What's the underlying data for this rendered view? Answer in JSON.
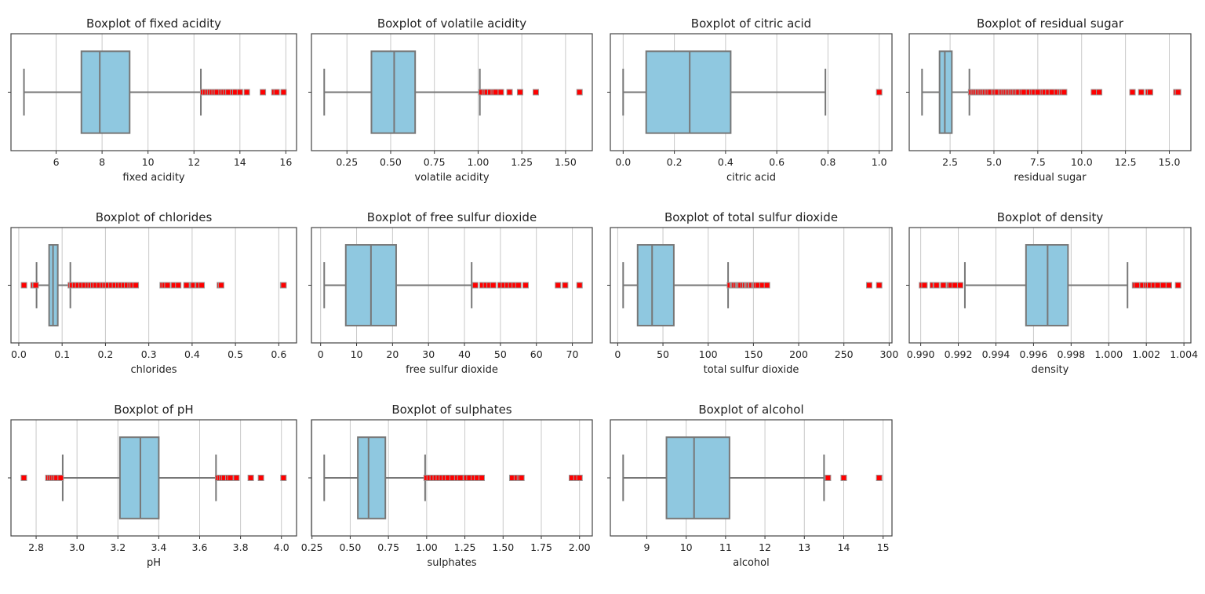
{
  "style": {
    "box_fill": "#8fc8e0",
    "line_color": "#777777",
    "flier_color": "#ff0000",
    "grid_color": "#c8c8c8"
  },
  "chart_data": [
    {
      "type": "boxplot",
      "title": "Boxplot of fixed acidity",
      "xlabel": "fixed acidity",
      "grid": true,
      "xlim": [
        4.035,
        16.465
      ],
      "ticks": [
        6,
        8,
        10,
        12,
        14,
        16
      ],
      "tick_labels": [
        "6",
        "8",
        "10",
        "12",
        "14",
        "16"
      ],
      "whisker_low": 4.6,
      "q1": 7.1,
      "median": 7.9,
      "q3": 9.2,
      "whisker_high": 12.3,
      "outliers": [
        12.4,
        12.5,
        12.6,
        12.7,
        12.8,
        12.9,
        13.0,
        13.2,
        13.3,
        13.4,
        13.5,
        13.7,
        13.8,
        14.0,
        14.3,
        15.0,
        15.5,
        15.6,
        15.9
      ]
    },
    {
      "type": "boxplot",
      "title": "Boxplot of volatile acidity",
      "xlabel": "volatile acidity",
      "grid": true,
      "xlim": [
        0.047,
        1.653
      ],
      "ticks": [
        0.25,
        0.5,
        0.75,
        1.0,
        1.25,
        1.5
      ],
      "tick_labels": [
        "0.25",
        "0.50",
        "0.75",
        "1.00",
        "1.25",
        "1.50"
      ],
      "whisker_low": 0.12,
      "q1": 0.39,
      "median": 0.52,
      "q3": 0.64,
      "whisker_high": 1.01,
      "outliers": [
        1.02,
        1.04,
        1.05,
        1.07,
        1.09,
        1.1,
        1.13,
        1.18,
        1.24,
        1.33,
        1.58
      ]
    },
    {
      "type": "boxplot",
      "title": "Boxplot of citric acid",
      "xlabel": "citric acid",
      "grid": true,
      "xlim": [
        -0.05,
        1.05
      ],
      "ticks": [
        0,
        0.2,
        0.4,
        0.6,
        0.8,
        1.0
      ],
      "tick_labels": [
        "0.0",
        "0.2",
        "0.4",
        "0.6",
        "0.8",
        "1.0"
      ],
      "whisker_low": 0.0,
      "q1": 0.09,
      "median": 0.26,
      "q3": 0.42,
      "whisker_high": 0.79,
      "outliers": [
        1.0
      ]
    },
    {
      "type": "boxplot",
      "title": "Boxplot of residual sugar",
      "xlabel": "residual sugar",
      "grid": true,
      "xlim": [
        0.17,
        16.23
      ],
      "ticks": [
        2.5,
        5,
        7.5,
        10,
        12.5,
        15
      ],
      "tick_labels": [
        "2.5",
        "5.0",
        "7.5",
        "10.0",
        "12.5",
        "15.0"
      ],
      "whisker_low": 0.9,
      "q1": 1.9,
      "median": 2.2,
      "q3": 2.6,
      "whisker_high": 3.6,
      "outliers": [
        3.7,
        3.8,
        3.9,
        4.0,
        4.1,
        4.2,
        4.3,
        4.4,
        4.5,
        4.6,
        4.7,
        4.8,
        5.0,
        5.1,
        5.2,
        5.4,
        5.5,
        5.6,
        5.7,
        5.8,
        5.9,
        6.0,
        6.1,
        6.2,
        6.3,
        6.4,
        6.6,
        6.7,
        7.0,
        7.2,
        7.3,
        7.5,
        7.8,
        7.9,
        8.1,
        8.3,
        8.6,
        8.8,
        8.9,
        9.0,
        10.7,
        11.0,
        12.9,
        13.4,
        13.8,
        13.9,
        15.4,
        15.5
      ]
    },
    {
      "type": "boxplot",
      "title": "Boxplot of chlorides",
      "xlabel": "chlorides",
      "grid": true,
      "xlim": [
        -0.018,
        0.641
      ],
      "ticks": [
        0,
        0.1,
        0.2,
        0.3,
        0.4,
        0.5,
        0.6
      ],
      "tick_labels": [
        "0.0",
        "0.1",
        "0.2",
        "0.3",
        "0.4",
        "0.5",
        "0.6"
      ],
      "whisker_low": 0.041,
      "q1": 0.07,
      "median": 0.079,
      "q3": 0.09,
      "whisker_high": 0.119,
      "outliers": [
        0.012,
        0.034,
        0.038,
        0.039,
        0.12,
        0.123,
        0.13,
        0.137,
        0.145,
        0.152,
        0.16,
        0.166,
        0.172,
        0.178,
        0.186,
        0.194,
        0.2,
        0.206,
        0.214,
        0.222,
        0.23,
        0.236,
        0.243,
        0.25,
        0.258,
        0.263,
        0.27,
        0.332,
        0.337,
        0.343,
        0.358,
        0.368,
        0.387,
        0.401,
        0.403,
        0.413,
        0.415,
        0.422,
        0.464,
        0.467,
        0.61,
        0.611
      ]
    },
    {
      "type": "boxplot",
      "title": "Boxplot of free sulfur dioxide",
      "xlabel": "free sulfur dioxide",
      "grid": true,
      "xlim": [
        -2.55,
        75.55
      ],
      "ticks": [
        0,
        10,
        20,
        30,
        40,
        50,
        60,
        70
      ],
      "tick_labels": [
        "0",
        "10",
        "20",
        "30",
        "40",
        "50",
        "60",
        "70"
      ],
      "whisker_low": 1,
      "q1": 7,
      "median": 14,
      "q3": 21,
      "whisker_high": 42,
      "outliers": [
        43,
        45,
        46,
        47,
        48,
        50,
        51,
        52,
        53,
        54,
        55,
        57,
        66,
        68,
        72
      ]
    },
    {
      "type": "boxplot",
      "title": "Boxplot of total sulfur dioxide",
      "xlabel": "total sulfur dioxide",
      "grid": true,
      "xlim": [
        -8.15,
        303.15
      ],
      "ticks": [
        0,
        50,
        100,
        150,
        200,
        250,
        300
      ],
      "tick_labels": [
        "0",
        "50",
        "100",
        "150",
        "200",
        "250",
        "300"
      ],
      "whisker_low": 6,
      "q1": 22,
      "median": 38,
      "q3": 62,
      "whisker_high": 122,
      "outliers": [
        124,
        127,
        128,
        129,
        131,
        133,
        134,
        135,
        136,
        139,
        141,
        143,
        144,
        145,
        147,
        148,
        151,
        152,
        153,
        155,
        160,
        165,
        278,
        289
      ]
    },
    {
      "type": "boxplot",
      "title": "Boxplot of density",
      "xlabel": "density",
      "grid": true,
      "xlim": [
        0.98939,
        1.00437
      ],
      "ticks": [
        0.99,
        0.992,
        0.994,
        0.996,
        0.998,
        1.0,
        1.002,
        1.004
      ],
      "tick_labels": [
        "0.990",
        "0.992",
        "0.994",
        "0.996",
        "0.998",
        "1.000",
        "1.002",
        "1.004"
      ],
      "whisker_low": 0.99235,
      "q1": 0.9956,
      "median": 0.99675,
      "q3": 0.997835,
      "whisker_high": 1.001,
      "outliers": [
        0.99007,
        0.9902,
        0.99064,
        0.9908,
        0.99084,
        0.9912,
        0.99154,
        0.9916,
        0.99182,
        0.9921,
        1.0014,
        1.0015,
        1.0018,
        1.002,
        1.0021,
        1.0022,
        1.0024,
        1.0026,
        1.0029,
        1.0032,
        1.00369
      ]
    },
    {
      "type": "boxplot",
      "title": "Boxplot of pH",
      "xlabel": "pH",
      "grid": true,
      "xlim": [
        2.677,
        4.074
      ],
      "ticks": [
        2.8,
        3.0,
        3.2,
        3.4,
        3.6,
        3.8,
        4.0
      ],
      "tick_labels": [
        "2.8",
        "3.0",
        "3.2",
        "3.4",
        "3.6",
        "3.8",
        "4.0"
      ],
      "whisker_low": 2.93,
      "q1": 3.21,
      "median": 3.31,
      "q3": 3.4,
      "whisker_high": 3.68,
      "outliers": [
        2.74,
        2.86,
        2.87,
        2.88,
        2.89,
        2.9,
        2.92,
        3.69,
        3.7,
        3.71,
        3.72,
        3.74,
        3.75,
        3.78,
        3.85,
        3.9,
        4.01
      ]
    },
    {
      "type": "boxplot",
      "title": "Boxplot of sulphates",
      "xlabel": "sulphates",
      "grid": true,
      "xlim": [
        0.2465,
        2.0835
      ],
      "ticks": [
        0.25,
        0.5,
        0.75,
        1.0,
        1.25,
        1.5,
        1.75,
        2.0
      ],
      "tick_labels": [
        "0.25",
        "0.50",
        "0.75",
        "1.00",
        "1.25",
        "1.50",
        "1.75",
        "2.00"
      ],
      "whisker_low": 0.33,
      "q1": 0.55,
      "median": 0.62,
      "q3": 0.73,
      "whisker_high": 0.99,
      "outliers": [
        1.0,
        1.02,
        1.04,
        1.06,
        1.08,
        1.1,
        1.12,
        1.14,
        1.17,
        1.2,
        1.22,
        1.26,
        1.28,
        1.31,
        1.33,
        1.36,
        1.56,
        1.59,
        1.61,
        1.62,
        1.95,
        1.98,
        2.0
      ]
    },
    {
      "type": "boxplot",
      "title": "Boxplot of alcohol",
      "xlabel": "alcohol",
      "grid": true,
      "xlim": [
        8.075,
        15.225
      ],
      "ticks": [
        9,
        10,
        11,
        12,
        13,
        14,
        15
      ],
      "tick_labels": [
        "9",
        "10",
        "11",
        "12",
        "13",
        "14",
        "15"
      ],
      "whisker_low": 8.4,
      "q1": 9.5,
      "median": 10.2,
      "q3": 11.1,
      "whisker_high": 13.5,
      "outliers": [
        13.6,
        14.0,
        14.9
      ]
    }
  ]
}
